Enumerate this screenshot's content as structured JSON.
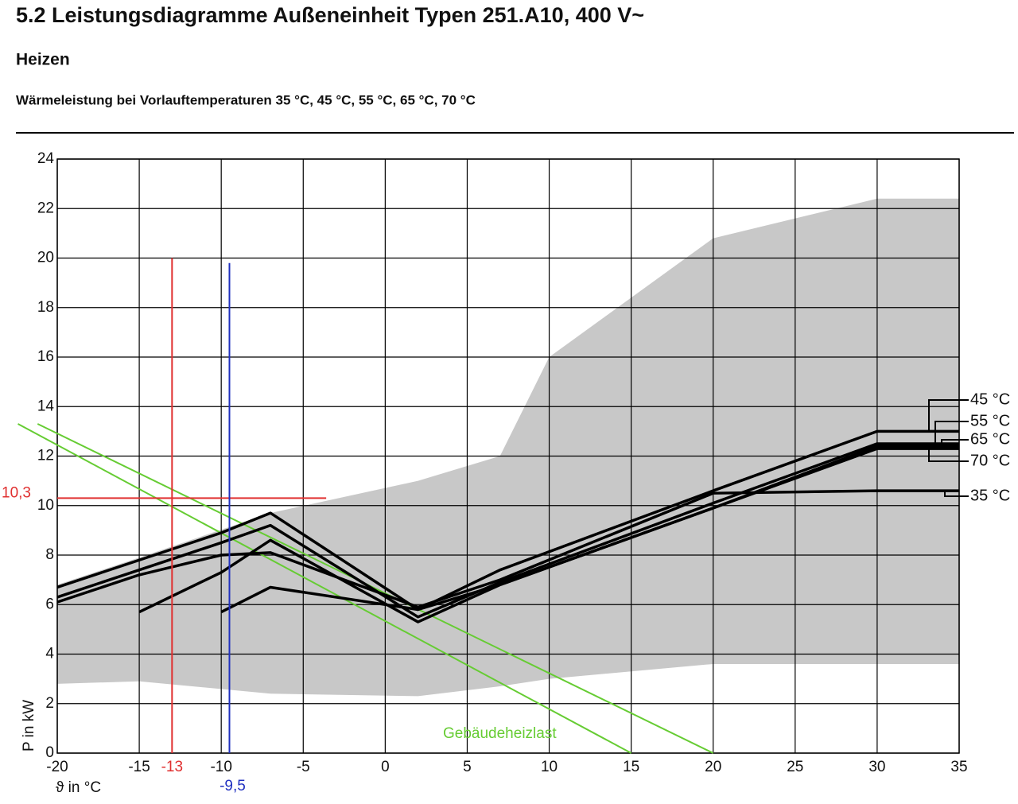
{
  "header": {
    "title": "5.2 Leistungsdiagramme Außeneinheit Typen 251.A10, 400 V~",
    "section": "Heizen",
    "caption": "Wärmeleistung bei Vorlauftemperaturen 35 °C, 45 °C, 55 °C, 65 °C, 70 °C"
  },
  "chart_data": {
    "type": "line",
    "x_label": "ϑ in °C",
    "y_label": "P in kW",
    "xlim": [
      -20,
      35
    ],
    "ylim": [
      0,
      24
    ],
    "xticks": [
      -20,
      -15,
      -10,
      -5,
      0,
      5,
      10,
      15,
      20,
      25,
      30,
      35
    ],
    "yticks": [
      0,
      2,
      4,
      6,
      8,
      10,
      12,
      14,
      16,
      18,
      20,
      22,
      24
    ],
    "grid": true,
    "x": [
      -20,
      -15,
      -10,
      -7,
      2,
      7,
      20,
      30,
      35
    ],
    "series": [
      {
        "name": "45 °C",
        "color": "#000000",
        "values": [
          6.7,
          7.8,
          8.9,
          9.7,
          5.8,
          7.4,
          10.6,
          13.0,
          13.0
        ]
      },
      {
        "name": "55 °C",
        "color": "#000000",
        "values": [
          6.3,
          7.4,
          8.5,
          9.2,
          5.5,
          6.9,
          10.1,
          12.5,
          12.5
        ]
      },
      {
        "name": "65 °C",
        "color": "#000000",
        "values": [
          null,
          5.7,
          7.3,
          8.6,
          5.3,
          6.8,
          9.9,
          12.4,
          12.4
        ]
      },
      {
        "name": "70 °C",
        "color": "#000000",
        "values": [
          null,
          null,
          5.7,
          6.7,
          5.8,
          6.8,
          9.9,
          12.3,
          12.3
        ]
      },
      {
        "name": "35 °C",
        "color": "#000000",
        "values": [
          6.1,
          7.2,
          8.0,
          8.1,
          5.9,
          7.0,
          10.5,
          10.6,
          10.6
        ]
      }
    ],
    "band": {
      "color": "#c8c8c8",
      "x": [
        -20,
        -15,
        -7,
        2,
        7,
        10,
        20,
        30,
        35
      ],
      "upper": [
        6.8,
        7.9,
        9.7,
        11.0,
        12.0,
        16.0,
        20.8,
        22.4,
        22.4
      ],
      "lower": [
        2.8,
        2.9,
        2.4,
        2.3,
        2.7,
        3.0,
        3.6,
        3.6,
        3.6
      ]
    },
    "heat_load": {
      "label": "Gebäudeheizlast",
      "color": "#66cc33",
      "lines": [
        {
          "x": [
            -22.4,
            15
          ],
          "y": [
            13.3,
            0
          ]
        },
        {
          "x": [
            -21.2,
            20
          ],
          "y": [
            13.3,
            0
          ]
        }
      ]
    },
    "markers": {
      "red": {
        "color": "#e03030",
        "x": {
          "value": -13,
          "label": "-13"
        },
        "y": {
          "value": 10.3,
          "label": "10,3"
        },
        "top": 20,
        "h_end": -3.6
      },
      "blue": {
        "color": "#2030c0",
        "x": {
          "value": -9.5,
          "label": "-9,5"
        },
        "top": 19.8
      }
    }
  }
}
